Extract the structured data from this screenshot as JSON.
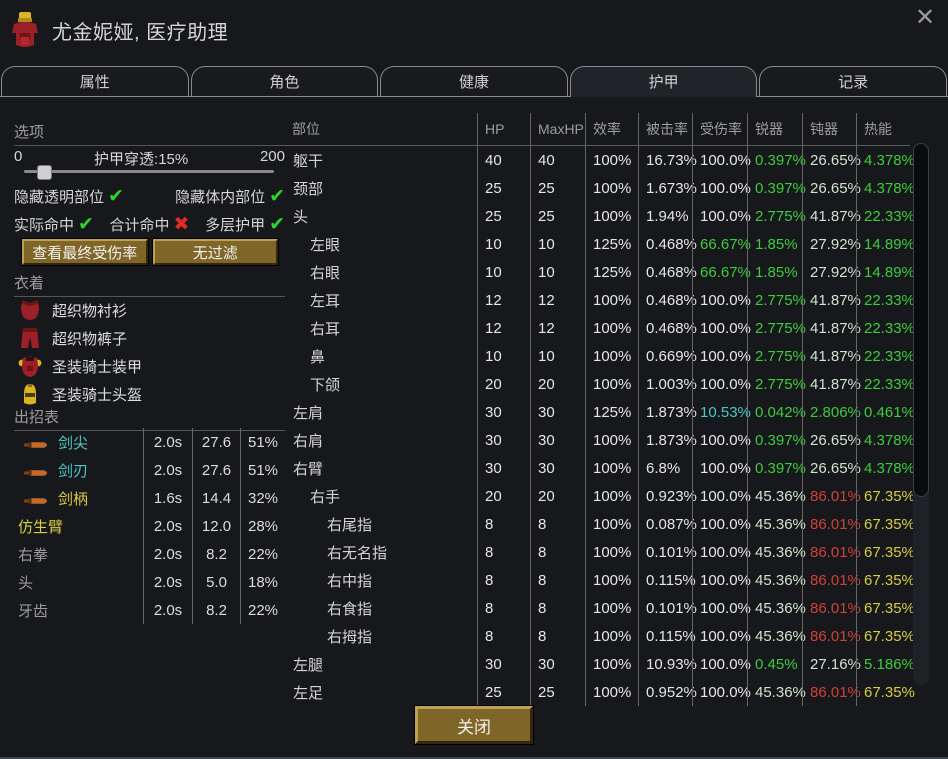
{
  "window": {
    "title": "尤金妮娅, 医疗助理",
    "close_glyph": "✕"
  },
  "tabs": [
    {
      "id": "attributes",
      "label": "属性",
      "selected": false
    },
    {
      "id": "character",
      "label": "角色",
      "selected": false
    },
    {
      "id": "health",
      "label": "健康",
      "selected": false
    },
    {
      "id": "armor",
      "label": "护甲",
      "selected": true
    },
    {
      "id": "records",
      "label": "记录",
      "selected": false
    }
  ],
  "icons": {
    "check": "✔",
    "cross": "✖"
  },
  "options": {
    "header": "选项",
    "slider": {
      "min": "0",
      "label": "护甲穿透:15%",
      "max": "200",
      "value_pct": 7.5
    },
    "toggle_rows": [
      [
        {
          "id": "hide-transparent-parts",
          "label": "隐藏透明部位",
          "state": "check"
        },
        {
          "id": "hide-internal-parts",
          "label": "隐藏体内部位",
          "state": "check"
        }
      ],
      [
        {
          "id": "actual-hit",
          "label": "实际命中",
          "state": "check"
        },
        {
          "id": "total-hit",
          "label": "合计命中",
          "state": "cross"
        },
        {
          "id": "multi-layer",
          "label": "多层护甲",
          "state": "check"
        }
      ]
    ],
    "buttons": [
      {
        "id": "view-final-damage",
        "label": "查看最终受伤率"
      },
      {
        "id": "no-filter",
        "label": "无过滤"
      }
    ]
  },
  "apparel": {
    "header": "衣着",
    "items": [
      {
        "icon": "shirt",
        "label": "超织物衬衫"
      },
      {
        "icon": "pants",
        "label": "超织物裤子"
      },
      {
        "icon": "armor",
        "label": "圣装骑士装甲"
      },
      {
        "icon": "helmet",
        "label": "圣装骑士头盔"
      }
    ]
  },
  "melee": {
    "header": "出招表",
    "rows": [
      {
        "name": "剑尖",
        "color": "cyan",
        "icon": true,
        "speed": "2.0s",
        "damage": "27.6",
        "chance": "51%"
      },
      {
        "name": "剑刃",
        "color": "cyan",
        "icon": true,
        "speed": "2.0s",
        "damage": "27.6",
        "chance": "51%"
      },
      {
        "name": "剑柄",
        "color": "yellow",
        "icon": true,
        "speed": "1.6s",
        "damage": "14.4",
        "chance": "32%"
      },
      {
        "name": "仿生臂",
        "color": "yellow",
        "icon": false,
        "speed": "2.0s",
        "damage": "12.0",
        "chance": "28%"
      },
      {
        "name": "右拳",
        "color": "gray",
        "icon": false,
        "speed": "2.0s",
        "damage": "8.2",
        "chance": "22%"
      },
      {
        "name": "头",
        "color": "gray",
        "icon": false,
        "speed": "2.0s",
        "damage": "5.0",
        "chance": "18%"
      },
      {
        "name": "牙齿",
        "color": "gray",
        "icon": false,
        "speed": "2.0s",
        "damage": "8.2",
        "chance": "22%"
      }
    ]
  },
  "body_table": {
    "headers": [
      "部位",
      "HP",
      "MaxHP",
      "效率",
      "被击率",
      "受伤率",
      "锐器",
      "钝器",
      "热能"
    ],
    "rows": [
      {
        "name": "躯干",
        "indent": 0,
        "cells": [
          [
            "40",
            "white"
          ],
          [
            "40",
            "white"
          ],
          [
            "100%",
            "white"
          ],
          [
            "16.73%",
            "white"
          ],
          [
            "100.0%",
            "white"
          ],
          [
            "0.397%",
            "green"
          ],
          [
            "26.65%",
            "pale"
          ],
          [
            "4.378%",
            "green"
          ]
        ]
      },
      {
        "name": "颈部",
        "indent": 0,
        "cells": [
          [
            "25",
            "white"
          ],
          [
            "25",
            "white"
          ],
          [
            "100%",
            "white"
          ],
          [
            "1.673%",
            "white"
          ],
          [
            "100.0%",
            "white"
          ],
          [
            "0.397%",
            "green"
          ],
          [
            "26.65%",
            "pale"
          ],
          [
            "4.378%",
            "green"
          ]
        ]
      },
      {
        "name": "头",
        "indent": 0,
        "cells": [
          [
            "25",
            "white"
          ],
          [
            "25",
            "white"
          ],
          [
            "100%",
            "white"
          ],
          [
            "1.94%",
            "white"
          ],
          [
            "100.0%",
            "white"
          ],
          [
            "2.775%",
            "green"
          ],
          [
            "41.87%",
            "pale"
          ],
          [
            "22.33%",
            "green"
          ]
        ]
      },
      {
        "name": "左眼",
        "indent": 1,
        "cells": [
          [
            "10",
            "white"
          ],
          [
            "10",
            "white"
          ],
          [
            "125%",
            "white"
          ],
          [
            "0.468%",
            "white"
          ],
          [
            "66.67%",
            "green"
          ],
          [
            "1.85%",
            "green"
          ],
          [
            "27.92%",
            "pale"
          ],
          [
            "14.89%",
            "green"
          ]
        ]
      },
      {
        "name": "右眼",
        "indent": 1,
        "cells": [
          [
            "10",
            "white"
          ],
          [
            "10",
            "white"
          ],
          [
            "125%",
            "white"
          ],
          [
            "0.468%",
            "white"
          ],
          [
            "66.67%",
            "green"
          ],
          [
            "1.85%",
            "green"
          ],
          [
            "27.92%",
            "pale"
          ],
          [
            "14.89%",
            "green"
          ]
        ]
      },
      {
        "name": "左耳",
        "indent": 1,
        "cells": [
          [
            "12",
            "white"
          ],
          [
            "12",
            "white"
          ],
          [
            "100%",
            "white"
          ],
          [
            "0.468%",
            "white"
          ],
          [
            "100.0%",
            "white"
          ],
          [
            "2.775%",
            "green"
          ],
          [
            "41.87%",
            "pale"
          ],
          [
            "22.33%",
            "green"
          ]
        ]
      },
      {
        "name": "右耳",
        "indent": 1,
        "cells": [
          [
            "12",
            "white"
          ],
          [
            "12",
            "white"
          ],
          [
            "100%",
            "white"
          ],
          [
            "0.468%",
            "white"
          ],
          [
            "100.0%",
            "white"
          ],
          [
            "2.775%",
            "green"
          ],
          [
            "41.87%",
            "pale"
          ],
          [
            "22.33%",
            "green"
          ]
        ]
      },
      {
        "name": "鼻",
        "indent": 1,
        "cells": [
          [
            "10",
            "white"
          ],
          [
            "10",
            "white"
          ],
          [
            "100%",
            "white"
          ],
          [
            "0.669%",
            "white"
          ],
          [
            "100.0%",
            "white"
          ],
          [
            "2.775%",
            "green"
          ],
          [
            "41.87%",
            "pale"
          ],
          [
            "22.33%",
            "green"
          ]
        ]
      },
      {
        "name": "下颌",
        "indent": 1,
        "cells": [
          [
            "20",
            "white"
          ],
          [
            "20",
            "white"
          ],
          [
            "100%",
            "white"
          ],
          [
            "1.003%",
            "white"
          ],
          [
            "100.0%",
            "white"
          ],
          [
            "2.775%",
            "green"
          ],
          [
            "41.87%",
            "pale"
          ],
          [
            "22.33%",
            "green"
          ]
        ]
      },
      {
        "name": "左肩",
        "indent": 0,
        "cells": [
          [
            "30",
            "white"
          ],
          [
            "30",
            "white"
          ],
          [
            "125%",
            "white"
          ],
          [
            "1.873%",
            "white"
          ],
          [
            "10.53%",
            "cyan"
          ],
          [
            "0.042%",
            "green"
          ],
          [
            "2.806%",
            "green"
          ],
          [
            "0.461%",
            "green"
          ]
        ]
      },
      {
        "name": "右肩",
        "indent": 0,
        "cells": [
          [
            "30",
            "white"
          ],
          [
            "30",
            "white"
          ],
          [
            "100%",
            "white"
          ],
          [
            "1.873%",
            "white"
          ],
          [
            "100.0%",
            "white"
          ],
          [
            "0.397%",
            "green"
          ],
          [
            "26.65%",
            "pale"
          ],
          [
            "4.378%",
            "green"
          ]
        ]
      },
      {
        "name": "右臂",
        "indent": 0,
        "cells": [
          [
            "30",
            "white"
          ],
          [
            "30",
            "white"
          ],
          [
            "100%",
            "white"
          ],
          [
            "6.8%",
            "white"
          ],
          [
            "100.0%",
            "white"
          ],
          [
            "0.397%",
            "green"
          ],
          [
            "26.65%",
            "pale"
          ],
          [
            "4.378%",
            "green"
          ]
        ]
      },
      {
        "name": "右手",
        "indent": 1,
        "cells": [
          [
            "20",
            "white"
          ],
          [
            "20",
            "white"
          ],
          [
            "100%",
            "white"
          ],
          [
            "0.923%",
            "white"
          ],
          [
            "100.0%",
            "white"
          ],
          [
            "45.36%",
            "pale"
          ],
          [
            "86.01%",
            "red"
          ],
          [
            "67.35%",
            "yellow"
          ]
        ]
      },
      {
        "name": "右尾指",
        "indent": 2,
        "cells": [
          [
            "8",
            "white"
          ],
          [
            "8",
            "white"
          ],
          [
            "100%",
            "white"
          ],
          [
            "0.087%",
            "white"
          ],
          [
            "100.0%",
            "white"
          ],
          [
            "45.36%",
            "pale"
          ],
          [
            "86.01%",
            "red"
          ],
          [
            "67.35%",
            "yellow"
          ]
        ]
      },
      {
        "name": "右无名指",
        "indent": 2,
        "cells": [
          [
            "8",
            "white"
          ],
          [
            "8",
            "white"
          ],
          [
            "100%",
            "white"
          ],
          [
            "0.101%",
            "white"
          ],
          [
            "100.0%",
            "white"
          ],
          [
            "45.36%",
            "pale"
          ],
          [
            "86.01%",
            "red"
          ],
          [
            "67.35%",
            "yellow"
          ]
        ]
      },
      {
        "name": "右中指",
        "indent": 2,
        "cells": [
          [
            "8",
            "white"
          ],
          [
            "8",
            "white"
          ],
          [
            "100%",
            "white"
          ],
          [
            "0.115%",
            "white"
          ],
          [
            "100.0%",
            "white"
          ],
          [
            "45.36%",
            "pale"
          ],
          [
            "86.01%",
            "red"
          ],
          [
            "67.35%",
            "yellow"
          ]
        ]
      },
      {
        "name": "右食指",
        "indent": 2,
        "cells": [
          [
            "8",
            "white"
          ],
          [
            "8",
            "white"
          ],
          [
            "100%",
            "white"
          ],
          [
            "0.101%",
            "white"
          ],
          [
            "100.0%",
            "white"
          ],
          [
            "45.36%",
            "pale"
          ],
          [
            "86.01%",
            "red"
          ],
          [
            "67.35%",
            "yellow"
          ]
        ]
      },
      {
        "name": "右拇指",
        "indent": 2,
        "cells": [
          [
            "8",
            "white"
          ],
          [
            "8",
            "white"
          ],
          [
            "100%",
            "white"
          ],
          [
            "0.115%",
            "white"
          ],
          [
            "100.0%",
            "white"
          ],
          [
            "45.36%",
            "pale"
          ],
          [
            "86.01%",
            "red"
          ],
          [
            "67.35%",
            "yellow"
          ]
        ]
      },
      {
        "name": "左腿",
        "indent": 0,
        "cells": [
          [
            "30",
            "white"
          ],
          [
            "30",
            "white"
          ],
          [
            "100%",
            "white"
          ],
          [
            "10.93%",
            "white"
          ],
          [
            "100.0%",
            "white"
          ],
          [
            "0.45%",
            "green"
          ],
          [
            "27.16%",
            "pale"
          ],
          [
            "5.186%",
            "green"
          ]
        ]
      },
      {
        "name": "左足",
        "indent": 0,
        "cells": [
          [
            "25",
            "white"
          ],
          [
            "25",
            "white"
          ],
          [
            "100%",
            "white"
          ],
          [
            "0.952%",
            "white"
          ],
          [
            "100.0%",
            "white"
          ],
          [
            "45.36%",
            "pale"
          ],
          [
            "86.01%",
            "red"
          ],
          [
            "67.35%",
            "yellow"
          ]
        ]
      }
    ]
  },
  "footer": {
    "close_label": "关闭"
  },
  "colors": {
    "background": "#17181b",
    "button_gold": "#7f6527",
    "good_green": "#3ecb3e",
    "pale_green": "#cfe3cf",
    "cyan": "#4cc8c8",
    "warn_yellow": "#d8cd44",
    "bad_red": "#d04038",
    "check_green": "#2fd12f",
    "cross_red": "#e02c24"
  }
}
